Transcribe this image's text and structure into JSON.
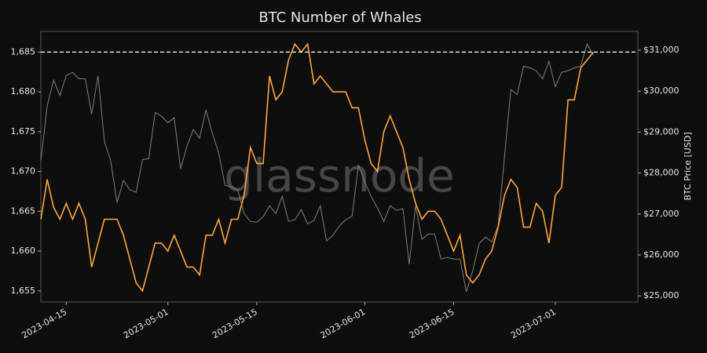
{
  "chart_data": {
    "type": "line",
    "title": "BTC Number of Whales",
    "y2label": "BTC Price [USD]",
    "watermark": "glassnode",
    "x": [
      "2023-04-11",
      "2023-04-12",
      "2023-04-13",
      "2023-04-14",
      "2023-04-15",
      "2023-04-16",
      "2023-04-17",
      "2023-04-18",
      "2023-04-19",
      "2023-04-20",
      "2023-04-21",
      "2023-04-22",
      "2023-04-23",
      "2023-04-24",
      "2023-04-25",
      "2023-04-26",
      "2023-04-27",
      "2023-04-28",
      "2023-04-29",
      "2023-04-30",
      "2023-05-01",
      "2023-05-02",
      "2023-05-03",
      "2023-05-04",
      "2023-05-05",
      "2023-05-06",
      "2023-05-07",
      "2023-05-08",
      "2023-05-09",
      "2023-05-10",
      "2023-05-11",
      "2023-05-12",
      "2023-05-13",
      "2023-05-14",
      "2023-05-15",
      "2023-05-16",
      "2023-05-17",
      "2023-05-18",
      "2023-05-19",
      "2023-05-20",
      "2023-05-21",
      "2023-05-22",
      "2023-05-23",
      "2023-05-24",
      "2023-05-25",
      "2023-05-26",
      "2023-05-27",
      "2023-05-28",
      "2023-05-29",
      "2023-05-30",
      "2023-05-31",
      "2023-06-01",
      "2023-06-02",
      "2023-06-03",
      "2023-06-04",
      "2023-06-05",
      "2023-06-06",
      "2023-06-07",
      "2023-06-08",
      "2023-06-09",
      "2023-06-10",
      "2023-06-11",
      "2023-06-12",
      "2023-06-13",
      "2023-06-14",
      "2023-06-15",
      "2023-06-16",
      "2023-06-17",
      "2023-06-18",
      "2023-06-19",
      "2023-06-20",
      "2023-06-21",
      "2023-06-22",
      "2023-06-23",
      "2023-06-24",
      "2023-06-25",
      "2023-06-26",
      "2023-06-27",
      "2023-06-28",
      "2023-06-29",
      "2023-06-30",
      "2023-07-01",
      "2023-07-02",
      "2023-07-03",
      "2023-07-04",
      "2023-07-05",
      "2023-07-06",
      "2023-07-07"
    ],
    "series": [
      {
        "color": "#7f7f7f",
        "axis": "y2",
        "values": [
          28300,
          29640,
          30270,
          29890,
          30380,
          30460,
          30300,
          30300,
          29440,
          30380,
          28770,
          28300,
          27280,
          27820,
          27590,
          27530,
          28330,
          28350,
          29480,
          29390,
          29230,
          29350,
          28100,
          28660,
          29060,
          28850,
          29540,
          28970,
          28490,
          27700,
          27660,
          27590,
          27010,
          26820,
          26800,
          26930,
          27200,
          27010,
          27430,
          26820,
          26860,
          27110,
          26760,
          26840,
          27200,
          26340,
          26480,
          26710,
          26860,
          26950,
          28200,
          27780,
          27430,
          27150,
          26820,
          27200,
          27090,
          27130,
          25770,
          27200,
          26380,
          26510,
          26510,
          25900,
          25940,
          25900,
          25900,
          25100,
          25610,
          26280,
          26440,
          26320,
          26710,
          28390,
          30040,
          29920,
          30610,
          30570,
          30500,
          30300,
          30730,
          30110,
          30460,
          30500,
          30570,
          30610,
          31150,
          30880
        ]
      },
      {
        "color": "#ffa640",
        "values": [
          1664,
          1669,
          1665.5,
          1664,
          1666,
          1664,
          1666,
          1664,
          1658,
          1661,
          1664,
          1664,
          1664,
          1662,
          1659,
          1656,
          1655,
          1658,
          1661,
          1661,
          1660,
          1662,
          1660,
          1658,
          1658,
          1657,
          1662,
          1662,
          1664,
          1661,
          1664,
          1664,
          1667,
          1673,
          1671,
          1671,
          1682,
          1679,
          1680,
          1684,
          1686,
          1685,
          1686,
          1681,
          1682,
          1681,
          1680,
          1680,
          1680,
          1678,
          1678,
          1674,
          1671,
          1670,
          1675,
          1677,
          1675,
          1673,
          1669,
          1666,
          1664,
          1665,
          1665,
          1664,
          1662,
          1660,
          1662,
          1657,
          1656,
          1657,
          1659,
          1660,
          1663,
          1667,
          1669,
          1668,
          1663,
          1663,
          1666,
          1665,
          1661,
          1667,
          1668,
          1679,
          1679,
          1683,
          1684,
          1685
        ]
      }
    ],
    "threshold": 1685,
    "threshold_color": "#ffffff",
    "xlim": [
      "2023-04-11",
      "2023-07-14"
    ],
    "xticks": [
      "2023-04-15",
      "2023-05-01",
      "2023-05-15",
      "2023-06-01",
      "2023-06-15",
      "2023-07-01"
    ],
    "ylim": [
      1653.6,
      1687.6
    ],
    "yticks": [
      {
        "value": 1655,
        "label": "1,655"
      },
      {
        "value": 1660,
        "label": "1,660"
      },
      {
        "value": 1665,
        "label": "1,665"
      },
      {
        "value": 1670,
        "label": "1,670"
      },
      {
        "value": 1675,
        "label": "1,675"
      },
      {
        "value": 1680,
        "label": "1,680"
      },
      {
        "value": 1685,
        "label": "1,685"
      }
    ],
    "y2lim": [
      24850,
      31460
    ],
    "y2ticks": [
      {
        "value": 25000,
        "label": "$25,000"
      },
      {
        "value": 26000,
        "label": "$26,000"
      },
      {
        "value": 27000,
        "label": "$27,000"
      },
      {
        "value": 28000,
        "label": "$28,000"
      },
      {
        "value": 29000,
        "label": "$29,000"
      },
      {
        "value": 30000,
        "label": "$30,000"
      },
      {
        "value": 31000,
        "label": "$31,000"
      }
    ]
  }
}
